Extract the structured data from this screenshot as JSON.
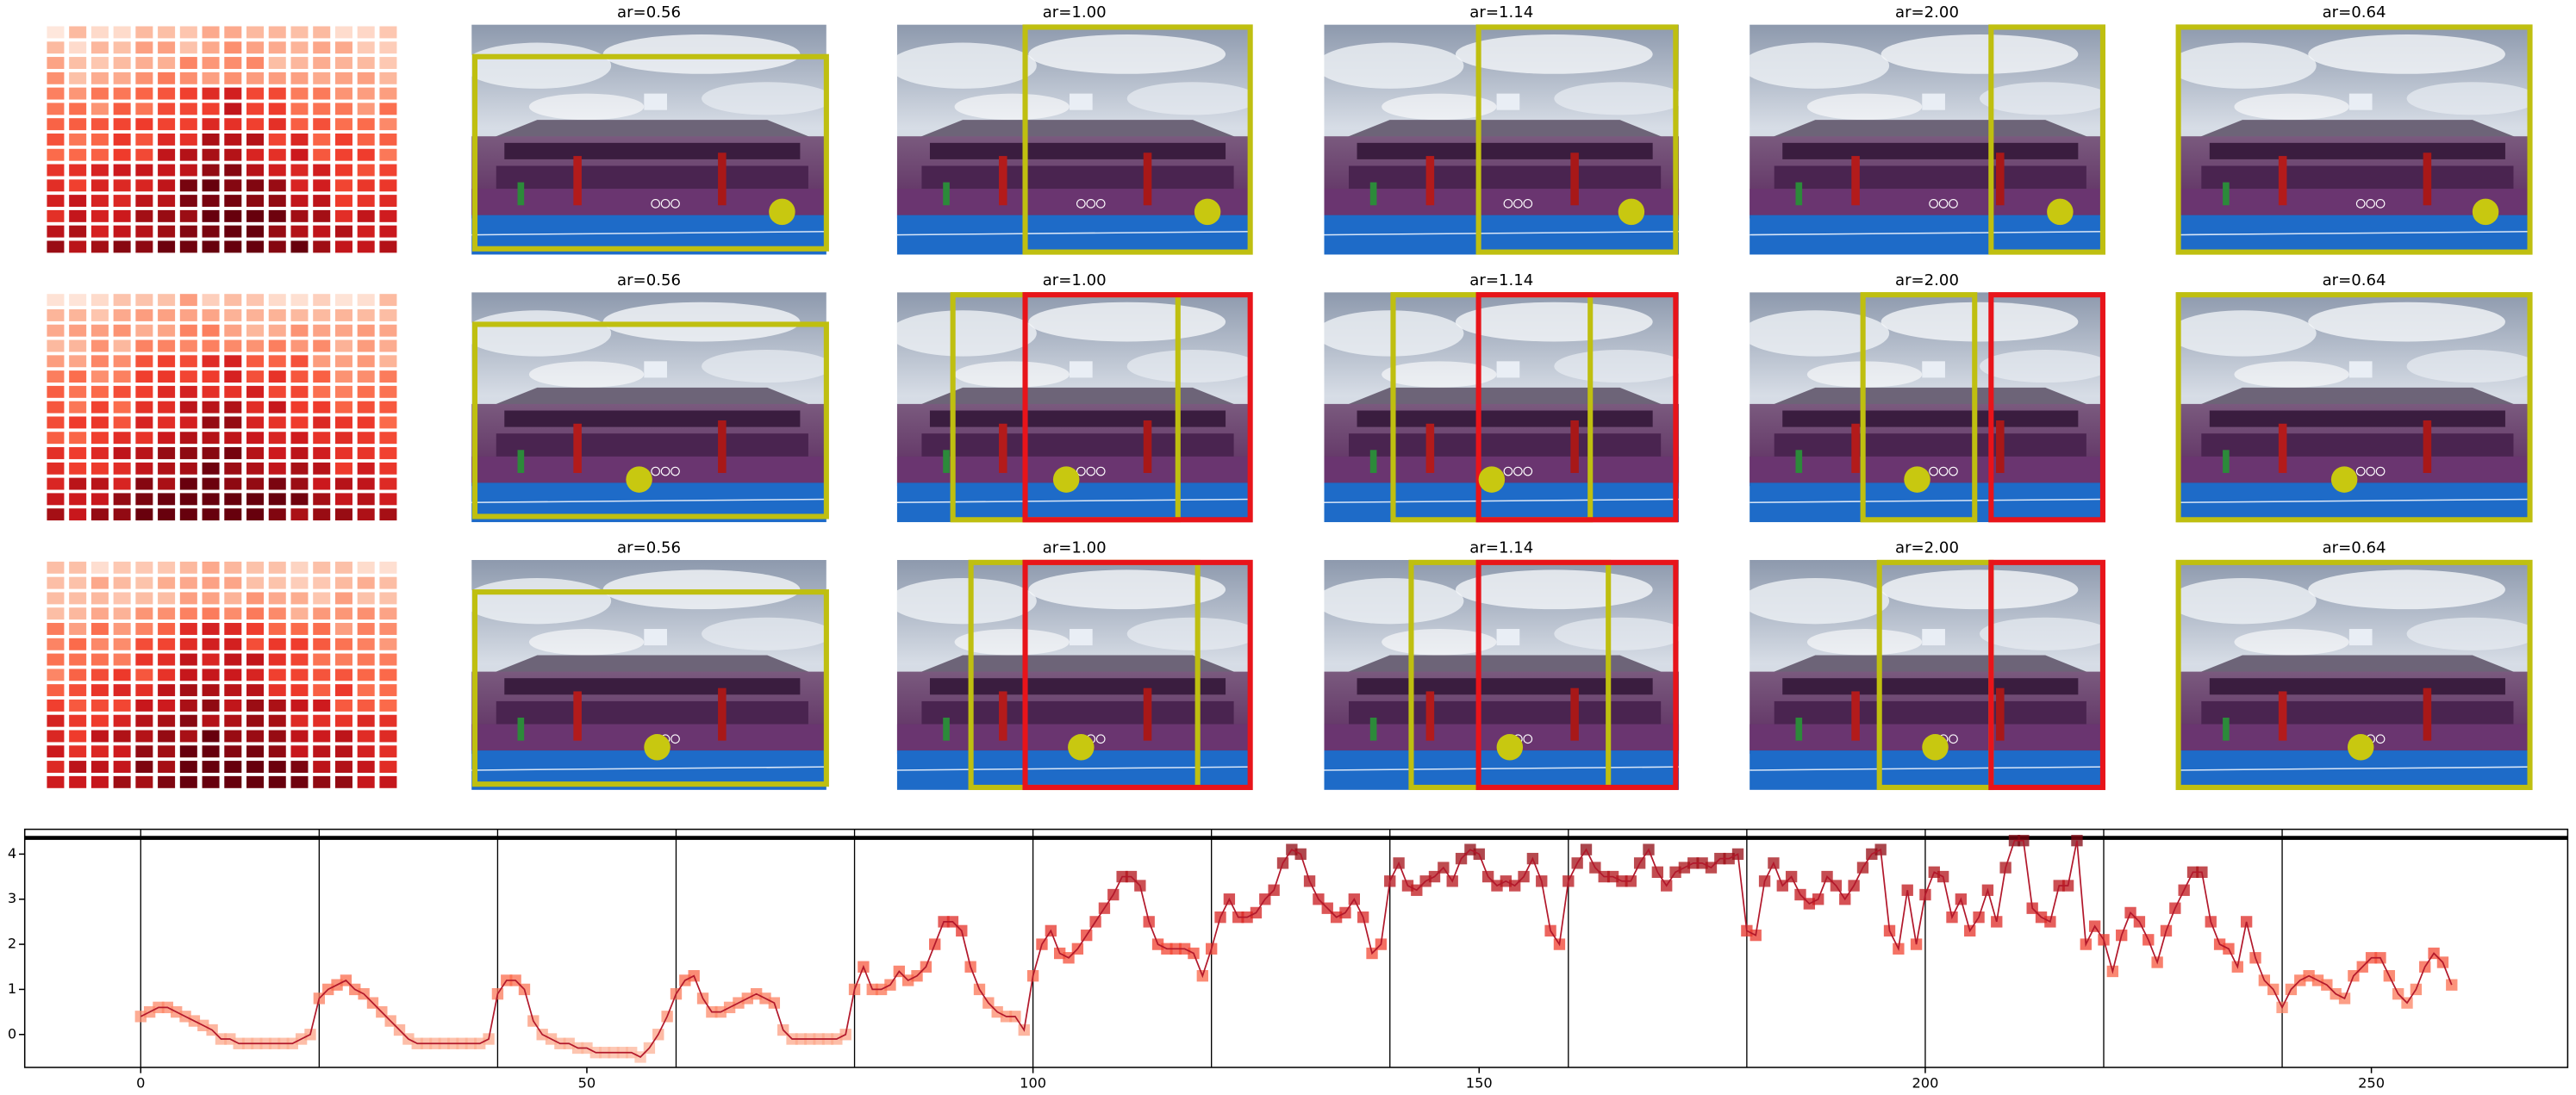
{
  "image_grid": {
    "titles": [
      [
        "ar=0.56",
        "ar=1.00",
        "ar=1.14",
        "ar=2.00",
        "ar=0.64"
      ],
      [
        "ar=0.56",
        "ar=1.00",
        "ar=1.14",
        "ar=2.00",
        "ar=0.64"
      ],
      [
        "ar=0.56",
        "ar=1.00",
        "ar=1.14",
        "ar=2.00",
        "ar=0.64"
      ]
    ]
  },
  "chart_data": {
    "type": "line",
    "line_color": "#b2182b",
    "marker_cmap": "Reds",
    "xlim": [
      -13,
      272
    ],
    "ylim": [
      -0.73,
      4.55
    ],
    "xticks": [
      0,
      50,
      100,
      150,
      200,
      250
    ],
    "yticks": [
      0,
      1,
      2,
      3,
      4
    ],
    "vlines": [
      0,
      20,
      40,
      60,
      80,
      100,
      120,
      140,
      160,
      180,
      200,
      220,
      240
    ],
    "hline": 4.36,
    "x": [
      0,
      1,
      2,
      3,
      4,
      5,
      6,
      7,
      8,
      9,
      10,
      11,
      12,
      13,
      14,
      15,
      16,
      17,
      18,
      19,
      20,
      21,
      22,
      23,
      24,
      25,
      26,
      27,
      28,
      29,
      30,
      31,
      32,
      33,
      34,
      35,
      36,
      37,
      38,
      39,
      40,
      41,
      42,
      43,
      44,
      45,
      46,
      47,
      48,
      49,
      50,
      51,
      52,
      53,
      54,
      55,
      56,
      57,
      58,
      59,
      60,
      61,
      62,
      63,
      64,
      65,
      66,
      67,
      68,
      69,
      70,
      71,
      72,
      73,
      74,
      75,
      76,
      77,
      78,
      79,
      80,
      81,
      82,
      83,
      84,
      85,
      86,
      87,
      88,
      89,
      90,
      91,
      92,
      93,
      94,
      95,
      96,
      97,
      98,
      99,
      100,
      101,
      102,
      103,
      104,
      105,
      106,
      107,
      108,
      109,
      110,
      111,
      112,
      113,
      114,
      115,
      116,
      117,
      118,
      119,
      120,
      121,
      122,
      123,
      124,
      125,
      126,
      127,
      128,
      129,
      130,
      131,
      132,
      133,
      134,
      135,
      136,
      137,
      138,
      139,
      140,
      141,
      142,
      143,
      144,
      145,
      146,
      147,
      148,
      149,
      150,
      151,
      152,
      153,
      154,
      155,
      156,
      157,
      158,
      159,
      160,
      161,
      162,
      163,
      164,
      165,
      166,
      167,
      168,
      169,
      170,
      171,
      172,
      173,
      174,
      175,
      176,
      177,
      178,
      179,
      180,
      181,
      182,
      183,
      184,
      185,
      186,
      187,
      188,
      189,
      190,
      191,
      192,
      193,
      194,
      195,
      196,
      197,
      198,
      199,
      200,
      201,
      202,
      203,
      204,
      205,
      206,
      207,
      208,
      209,
      210,
      211,
      212,
      213,
      214,
      215,
      216,
      217,
      218,
      219,
      220,
      221,
      222,
      223,
      224,
      225,
      226,
      227,
      228,
      229,
      230,
      231,
      232,
      233,
      234,
      235,
      236,
      237,
      238,
      239,
      240,
      241,
      242,
      243,
      244,
      245,
      246,
      247,
      248,
      249,
      250,
      251,
      252,
      253,
      254,
      255,
      256,
      257,
      258,
      259
    ],
    "values": [
      0.4,
      0.5,
      0.6,
      0.6,
      0.5,
      0.4,
      0.3,
      0.2,
      0.1,
      -0.1,
      -0.1,
      -0.2,
      -0.2,
      -0.2,
      -0.2,
      -0.2,
      -0.2,
      -0.2,
      -0.1,
      0.0,
      0.8,
      1.0,
      1.1,
      1.2,
      1.0,
      0.9,
      0.7,
      0.5,
      0.3,
      0.1,
      -0.1,
      -0.2,
      -0.2,
      -0.2,
      -0.2,
      -0.2,
      -0.2,
      -0.2,
      -0.2,
      -0.1,
      0.9,
      1.2,
      1.2,
      1.0,
      0.3,
      0.0,
      -0.1,
      -0.2,
      -0.2,
      -0.3,
      -0.3,
      -0.4,
      -0.4,
      -0.4,
      -0.4,
      -0.4,
      -0.5,
      -0.3,
      0.0,
      0.4,
      0.9,
      1.2,
      1.3,
      0.8,
      0.5,
      0.5,
      0.6,
      0.7,
      0.8,
      0.9,
      0.8,
      0.7,
      0.1,
      -0.1,
      -0.1,
      -0.1,
      -0.1,
      -0.1,
      -0.1,
      0.0,
      1.0,
      1.5,
      1.0,
      1.0,
      1.1,
      1.4,
      1.2,
      1.3,
      1.5,
      2.0,
      2.5,
      2.5,
      2.3,
      1.5,
      1.0,
      0.7,
      0.5,
      0.4,
      0.4,
      0.1,
      1.3,
      2.0,
      2.3,
      1.8,
      1.7,
      1.9,
      2.2,
      2.5,
      2.8,
      3.1,
      3.5,
      3.5,
      3.3,
      2.5,
      2.0,
      1.9,
      1.9,
      1.9,
      1.8,
      1.3,
      1.9,
      2.6,
      3.0,
      2.6,
      2.6,
      2.7,
      3.0,
      3.2,
      3.8,
      4.1,
      4.0,
      3.4,
      3.0,
      2.8,
      2.6,
      2.7,
      3.0,
      2.6,
      1.8,
      2.0,
      3.4,
      3.8,
      3.3,
      3.2,
      3.4,
      3.5,
      3.7,
      3.4,
      3.9,
      4.1,
      4.0,
      3.5,
      3.3,
      3.4,
      3.3,
      3.5,
      3.9,
      3.4,
      2.3,
      2.0,
      3.4,
      3.8,
      4.1,
      3.7,
      3.5,
      3.5,
      3.4,
      3.4,
      3.8,
      4.1,
      3.6,
      3.3,
      3.6,
      3.7,
      3.8,
      3.8,
      3.7,
      3.9,
      3.9,
      4.0,
      2.3,
      2.2,
      3.4,
      3.8,
      3.3,
      3.5,
      3.1,
      2.9,
      3.0,
      3.5,
      3.3,
      3.0,
      3.3,
      3.7,
      4.0,
      4.1,
      2.3,
      1.9,
      3.2,
      2.0,
      3.1,
      3.6,
      3.5,
      2.6,
      3.0,
      2.3,
      2.6,
      3.2,
      2.5,
      3.7,
      4.3,
      4.3,
      2.8,
      2.6,
      2.5,
      3.3,
      3.3,
      4.3,
      2.0,
      2.4,
      2.1,
      1.4,
      2.2,
      2.7,
      2.5,
      2.1,
      1.6,
      2.3,
      2.8,
      3.2,
      3.6,
      3.6,
      2.5,
      2.0,
      1.9,
      1.5,
      2.5,
      1.7,
      1.2,
      1.0,
      0.6,
      1.0,
      1.2,
      1.3,
      1.2,
      1.1,
      0.9,
      0.8,
      1.3,
      1.5,
      1.7,
      1.7,
      1.3,
      0.9,
      0.7,
      1.0,
      1.5,
      1.8,
      1.6,
      1.1
    ]
  }
}
